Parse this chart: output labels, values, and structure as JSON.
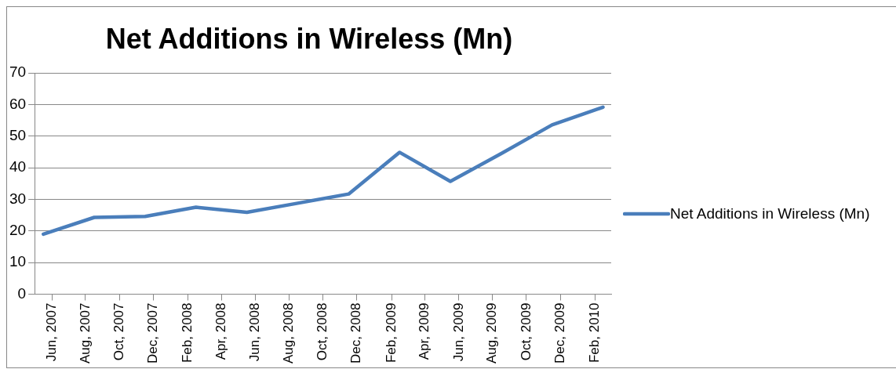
{
  "chart_data": {
    "type": "line",
    "title": "Net Additions in Wireless (Mn)",
    "x": [
      "2007-06",
      "2007-09",
      "2007-12",
      "2008-03",
      "2008-06",
      "2008-09",
      "2008-12",
      "2009-03",
      "2009-06",
      "2009-09",
      "2009-12",
      "2010-03"
    ],
    "series": [
      {
        "name": "Net Additions in Wireless (Mn)",
        "color": "#4a7ebb",
        "values": [
          19.0,
          24.3,
          24.6,
          27.5,
          25.9,
          28.8,
          31.7,
          44.9,
          35.7,
          44.5,
          53.6,
          59.2
        ]
      }
    ],
    "xlim": [
      "2007-05-16",
      "2010-03-16"
    ],
    "xticks": [
      {
        "value": "2007-06-16",
        "label": "Jun, 2007"
      },
      {
        "value": "2007-08-16",
        "label": "Aug, 2007"
      },
      {
        "value": "2007-10-16",
        "label": "Oct, 2007"
      },
      {
        "value": "2007-12-16",
        "label": "Dec, 2007"
      },
      {
        "value": "2008-02-16",
        "label": "Feb, 2008"
      },
      {
        "value": "2008-04-16",
        "label": "Apr, 2008"
      },
      {
        "value": "2008-06-16",
        "label": "Jun, 2008"
      },
      {
        "value": "2008-08-16",
        "label": "Aug, 2008"
      },
      {
        "value": "2008-10-16",
        "label": "Oct, 2008"
      },
      {
        "value": "2008-12-16",
        "label": "Dec, 2008"
      },
      {
        "value": "2009-02-16",
        "label": "Feb, 2009"
      },
      {
        "value": "2009-04-16",
        "label": "Apr, 2009"
      },
      {
        "value": "2009-06-16",
        "label": "Jun, 2009"
      },
      {
        "value": "2009-08-16",
        "label": "Aug, 2009"
      },
      {
        "value": "2009-10-16",
        "label": "Oct, 2009"
      },
      {
        "value": "2009-12-16",
        "label": "Dec, 2009"
      },
      {
        "value": "2010-02-16",
        "label": "Feb, 2010"
      }
    ],
    "ylim": [
      0,
      70
    ],
    "yticks": [
      0,
      10,
      20,
      30,
      40,
      50,
      60,
      70
    ],
    "grid": "y",
    "legend": "right",
    "marker": "none",
    "line_style": "solid"
  }
}
